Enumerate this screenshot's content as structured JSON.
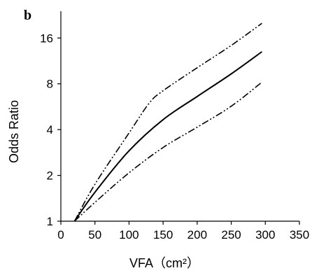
{
  "panel_label": "b",
  "chart_data": {
    "type": "line",
    "title": "",
    "xlabel": "VFA（cm²）",
    "ylabel": "Odds Ratio",
    "xlim": [
      0,
      350
    ],
    "ylim": [
      1,
      24
    ],
    "y_scale": "log2",
    "x_ticks": [
      0,
      50,
      100,
      150,
      200,
      250,
      300,
      350
    ],
    "y_ticks": [
      1,
      2,
      4,
      8,
      16
    ],
    "grid": false,
    "legend": "none",
    "series": [
      {
        "style": "solid",
        "color": "#000000",
        "x": [
          20,
          50,
          100,
          150,
          200,
          250,
          295
        ],
        "y": [
          1.0,
          1.55,
          2.9,
          4.65,
          6.6,
          9.3,
          13.0
        ]
      },
      {
        "style": "dash-dot-dot",
        "color": "#000000",
        "x": [
          20,
          50,
          100,
          130,
          150,
          200,
          250,
          295
        ],
        "y": [
          1.0,
          1.75,
          3.8,
          6.0,
          7.2,
          10.2,
          14.3,
          20.0
        ]
      },
      {
        "style": "dash-dot-dot",
        "color": "#000000",
        "x": [
          20,
          50,
          100,
          150,
          200,
          250,
          295
        ],
        "y": [
          1.0,
          1.33,
          2.08,
          3.05,
          4.15,
          5.7,
          8.2
        ]
      }
    ]
  }
}
